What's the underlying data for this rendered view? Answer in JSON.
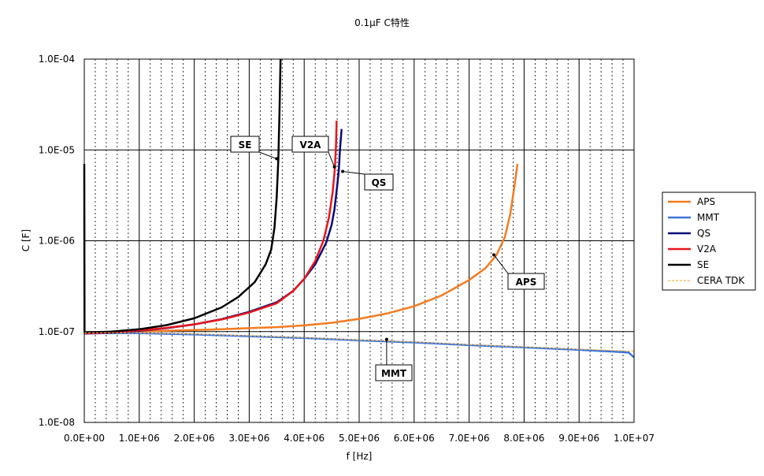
{
  "chart_data": {
    "type": "line",
    "title": "0.1μF C特性",
    "xlabel": "f [Hz]",
    "ylabel": "C [F]",
    "xlim": [
      0,
      10000000
    ],
    "ylim": [
      1e-08,
      0.0001
    ],
    "yscale": "log",
    "grid": true,
    "legend_position": "right",
    "x_tick_labels": [
      "0.0E+00",
      "1.0E+06",
      "2.0E+06",
      "3.0E+06",
      "4.0E+06",
      "5.0E+06",
      "6.0E+06",
      "7.0E+06",
      "8.0E+06",
      "9.0E+06",
      "1.0E+07"
    ],
    "y_tick_labels": [
      "1.0E-08",
      "1.0E-07",
      "1.0E-06",
      "1.0E-05",
      "1.0E-04"
    ],
    "series": [
      {
        "name": "APS",
        "color": "#f47b20",
        "dash": false,
        "points": [
          [
            0,
            9.8e-08
          ],
          [
            500000,
            9.9e-08
          ],
          [
            1000000,
            1e-07
          ],
          [
            1500000,
            1.02e-07
          ],
          [
            2000000,
            1.04e-07
          ],
          [
            2500000,
            1.06e-07
          ],
          [
            3000000,
            1.09e-07
          ],
          [
            3500000,
            1.12e-07
          ],
          [
            4000000,
            1.17e-07
          ],
          [
            4500000,
            1.25e-07
          ],
          [
            5000000,
            1.38e-07
          ],
          [
            5500000,
            1.58e-07
          ],
          [
            6000000,
            1.9e-07
          ],
          [
            6500000,
            2.5e-07
          ],
          [
            7000000,
            3.7e-07
          ],
          [
            7300000,
            5e-07
          ],
          [
            7500000,
            7e-07
          ],
          [
            7650000,
            1.1e-06
          ],
          [
            7750000,
            2e-06
          ],
          [
            7820000,
            3.8e-06
          ],
          [
            7880000,
            7e-06
          ]
        ]
      },
      {
        "name": "MMT",
        "color": "#3d73dc",
        "dash": false,
        "points": [
          [
            0,
            9.6e-08
          ],
          [
            1000000,
            9.6e-08
          ],
          [
            2000000,
            9.3e-08
          ],
          [
            3000000,
            8.9e-08
          ],
          [
            4000000,
            8.5e-08
          ],
          [
            5000000,
            8e-08
          ],
          [
            6000000,
            7.6e-08
          ],
          [
            7000000,
            7.1e-08
          ],
          [
            8000000,
            6.7e-08
          ],
          [
            9000000,
            6.3e-08
          ],
          [
            9900000,
            5.9e-08
          ],
          [
            10000000,
            5.2e-08
          ]
        ]
      },
      {
        "name": "QS",
        "color": "#0a0a7a",
        "dash": false,
        "points": [
          [
            0,
            9.5e-08
          ],
          [
            500000,
            9.7e-08
          ],
          [
            1000000,
            1.02e-07
          ],
          [
            1500000,
            1.09e-07
          ],
          [
            2000000,
            1.2e-07
          ],
          [
            2500000,
            1.37e-07
          ],
          [
            3000000,
            1.65e-07
          ],
          [
            3500000,
            2.1e-07
          ],
          [
            3800000,
            2.8e-07
          ],
          [
            4000000,
            3.8e-07
          ],
          [
            4200000,
            5.5e-07
          ],
          [
            4400000,
            9.5e-07
          ],
          [
            4500000,
            1.5e-06
          ],
          [
            4550000,
            2.2e-06
          ],
          [
            4600000,
            4e-06
          ],
          [
            4630000,
            6e-06
          ],
          [
            4650000,
            1e-05
          ],
          [
            4680000,
            1.7e-05
          ]
        ]
      },
      {
        "name": "V2A",
        "color": "#e8161c",
        "dash": false,
        "points": [
          [
            0,
            9.6e-08
          ],
          [
            500000,
            9.8e-08
          ],
          [
            1000000,
            1.03e-07
          ],
          [
            1500000,
            1.1e-07
          ],
          [
            2000000,
            1.2e-07
          ],
          [
            2500000,
            1.36e-07
          ],
          [
            3000000,
            1.62e-07
          ],
          [
            3500000,
            2.05e-07
          ],
          [
            3800000,
            2.8e-07
          ],
          [
            4000000,
            3.8e-07
          ],
          [
            4200000,
            6e-07
          ],
          [
            4350000,
            1e-06
          ],
          [
            4450000,
            1.8e-06
          ],
          [
            4520000,
            3.5e-06
          ],
          [
            4560000,
            6.5e-06
          ],
          [
            4580000,
            1.2e-05
          ],
          [
            4590000,
            2.1e-05
          ]
        ]
      },
      {
        "name": "SE",
        "color": "#000000",
        "dash": false,
        "points": [
          [
            0,
            7e-06
          ],
          [
            5000,
            9.8e-08
          ],
          [
            500000,
            1e-07
          ],
          [
            1000000,
            1.06e-07
          ],
          [
            1500000,
            1.18e-07
          ],
          [
            2000000,
            1.4e-07
          ],
          [
            2500000,
            1.85e-07
          ],
          [
            2800000,
            2.4e-07
          ],
          [
            3100000,
            3.5e-07
          ],
          [
            3300000,
            5.5e-07
          ],
          [
            3400000,
            8e-07
          ],
          [
            3460000,
            1.4e-06
          ],
          [
            3500000,
            3e-06
          ],
          [
            3530000,
            8e-06
          ],
          [
            3550000,
            2.5e-05
          ],
          [
            3570000,
            0.0001
          ]
        ]
      },
      {
        "name": "CERA TDK",
        "color": "#f5b942",
        "dash": true,
        "points": [
          [
            0,
            9.7e-08
          ],
          [
            1000000,
            9.7e-08
          ],
          [
            2000000,
            9.4e-08
          ],
          [
            3000000,
            9e-08
          ],
          [
            4000000,
            8.6e-08
          ],
          [
            5000000,
            8.1e-08
          ],
          [
            6000000,
            7.7e-08
          ],
          [
            7000000,
            7.2e-08
          ],
          [
            8000000,
            6.8e-08
          ],
          [
            9000000,
            6.4e-08
          ],
          [
            10000000,
            6.1e-08
          ]
        ]
      }
    ],
    "annotations": [
      {
        "text": "SE",
        "target": [
          3500000,
          8e-06
        ]
      },
      {
        "text": "V2A",
        "target": [
          4550000,
          6.5e-06
        ]
      },
      {
        "text": "QS",
        "target": [
          4700000,
          5.8e-06
        ]
      },
      {
        "text": "APS",
        "target": [
          7450000,
          7e-07
        ]
      },
      {
        "text": "MMT",
        "target": [
          5500000,
          8.2e-08
        ]
      }
    ]
  }
}
